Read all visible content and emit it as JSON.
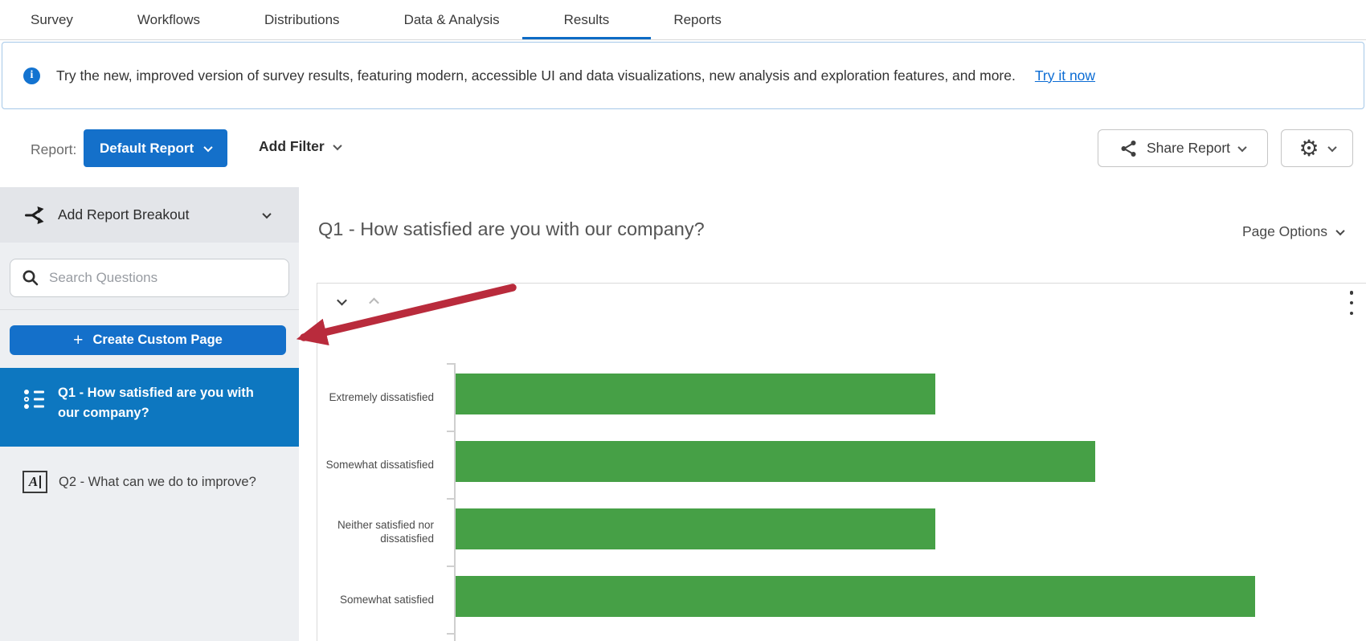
{
  "nav": {
    "tabs": [
      {
        "label": "Survey",
        "active": false
      },
      {
        "label": "Workflows",
        "active": false
      },
      {
        "label": "Distributions",
        "active": false
      },
      {
        "label": "Data & Analysis",
        "active": false
      },
      {
        "label": "Results",
        "active": true
      },
      {
        "label": "Reports",
        "active": false
      }
    ]
  },
  "banner": {
    "message": "Try the new, improved version of survey results, featuring modern, accessible UI and data visualizations, new analysis and exploration features, and more.",
    "link_label": "Try it now"
  },
  "toolbar": {
    "report_label": "Report:",
    "report_button_label": "Default Report",
    "add_filter_label": "Add Filter",
    "share_report_label": "Share Report"
  },
  "sidebar": {
    "breakout_label": "Add Report Breakout",
    "search_placeholder": "Search Questions",
    "create_page_label": "Create Custom Page",
    "items": [
      {
        "label": "Q1 - How satisfied are you with our company?",
        "selected": true,
        "icon": "multiple-choice-icon"
      },
      {
        "label": "Q2 - What can we do to improve?",
        "selected": false,
        "icon": "text-entry-icon"
      }
    ]
  },
  "main": {
    "page_title": "Q1 - How satisfied are you with our company?",
    "page_options_label": "Page Options"
  },
  "chart_data": {
    "type": "bar",
    "orientation": "horizontal",
    "title": "Q1 - How satisfied are you with our company?",
    "categories": [
      "Extremely dissatisfied",
      "Somewhat dissatisfied",
      "Neither satisfied nor dissatisfied",
      "Somewhat satisfied"
    ],
    "values": [
      3,
      4,
      3,
      5
    ],
    "xlim": [
      0,
      5.65
    ],
    "bar_color": "#46a046",
    "grid": false,
    "legend": false,
    "axis_note": "x-axis scale cropped below viewport; values estimated from relative bar lengths"
  },
  "colors": {
    "primary_button_blue": "#1470ca",
    "selected_item_blue": "#0d77c0",
    "active_tab_underline": "#0d6bc5",
    "link_blue": "#0b6cd4",
    "bar_green": "#46a046",
    "annotation_arrow_red": "#b92b3c",
    "info_icon_blue": "#1373d0"
  }
}
